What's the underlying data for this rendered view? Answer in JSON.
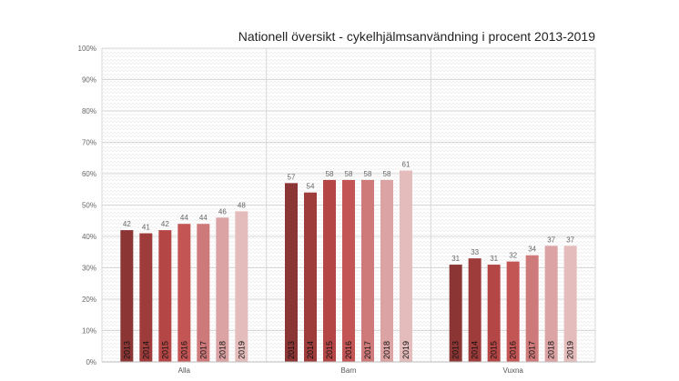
{
  "chart_data": {
    "type": "bar",
    "title": "Nationell översikt - cykelhjälmsanvändning i procent 2013-2019",
    "xlabel": "",
    "ylabel": "",
    "ylim": [
      0,
      100
    ],
    "yticks": [
      "0%",
      "10%",
      "20%",
      "30%",
      "40%",
      "50%",
      "60%",
      "70%",
      "80%",
      "90%",
      "100%"
    ],
    "grid": true,
    "legend": "none",
    "categories": [
      "Alla",
      "Barn",
      "Vuxna"
    ],
    "series": [
      {
        "name": "2013",
        "color": "#8b3535",
        "values": [
          42,
          57,
          31
        ]
      },
      {
        "name": "2014",
        "color": "#9e3b3b",
        "values": [
          41,
          54,
          33
        ]
      },
      {
        "name": "2015",
        "color": "#b54646",
        "values": [
          42,
          58,
          31
        ]
      },
      {
        "name": "2016",
        "color": "#c45555",
        "values": [
          44,
          58,
          32
        ]
      },
      {
        "name": "2017",
        "color": "#cf7a7a",
        "values": [
          44,
          58,
          34
        ]
      },
      {
        "name": "2018",
        "color": "#dba3a3",
        "values": [
          46,
          58,
          37
        ]
      },
      {
        "name": "2019",
        "color": "#e5bcbc",
        "values": [
          48,
          61,
          37
        ]
      }
    ]
  }
}
